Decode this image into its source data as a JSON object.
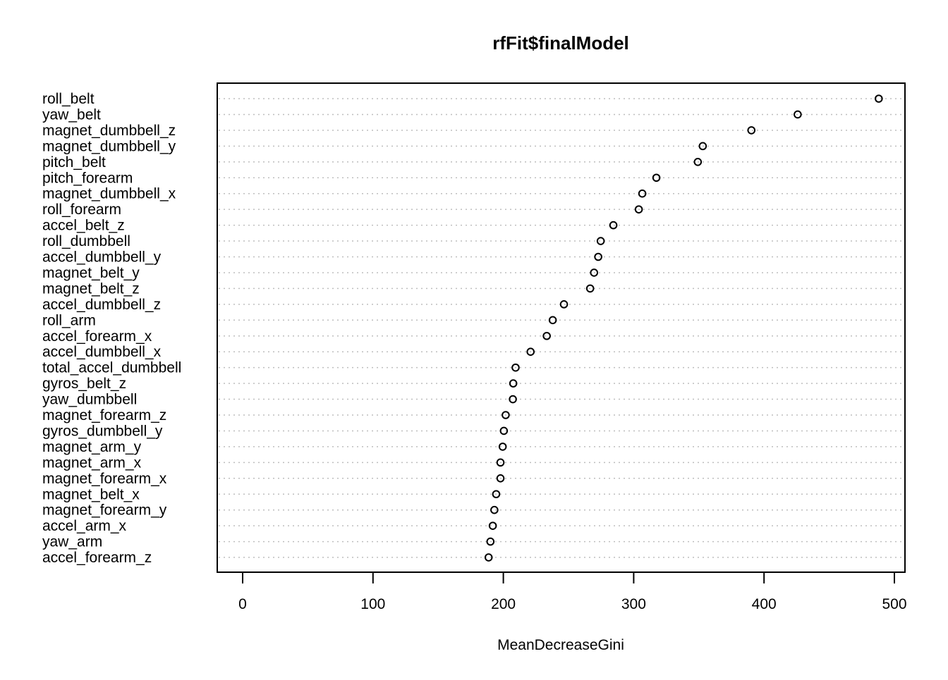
{
  "chart_data": {
    "type": "scatter",
    "title": "rfFit$finalModel",
    "xlabel": "MeanDecreaseGini",
    "ylabel": "",
    "xlim": [
      -10,
      510
    ],
    "xticks": [
      0,
      100,
      200,
      300,
      400,
      500
    ],
    "grid": "horizontal dotted lines per variable",
    "legend": "none",
    "marker": "open circle",
    "categories": [
      "roll_belt",
      "yaw_belt",
      "magnet_dumbbell_z",
      "magnet_dumbbell_y",
      "pitch_belt",
      "pitch_forearm",
      "magnet_dumbbell_x",
      "roll_forearm",
      "accel_belt_z",
      "roll_dumbbell",
      "accel_dumbbell_y",
      "magnet_belt_y",
      "magnet_belt_z",
      "accel_dumbbell_z",
      "roll_arm",
      "accel_forearm_x",
      "accel_dumbbell_x",
      "total_accel_dumbbell",
      "gyros_belt_z",
      "yaw_dumbbell",
      "magnet_forearm_z",
      "gyros_dumbbell_y",
      "magnet_arm_y",
      "magnet_arm_x",
      "magnet_forearm_x",
      "magnet_belt_x",
      "magnet_forearm_y",
      "accel_arm_x",
      "yaw_arm",
      "accel_forearm_z"
    ],
    "values": [
      488.0,
      425.8,
      390.3,
      353.0,
      349.2,
      317.4,
      306.6,
      303.9,
      284.4,
      274.7,
      272.8,
      269.6,
      266.6,
      246.5,
      237.9,
      233.3,
      220.9,
      209.4,
      207.6,
      207.3,
      201.8,
      200.4,
      199.5,
      197.8,
      197.8,
      194.5,
      193.1,
      191.9,
      190.1,
      188.7
    ]
  }
}
